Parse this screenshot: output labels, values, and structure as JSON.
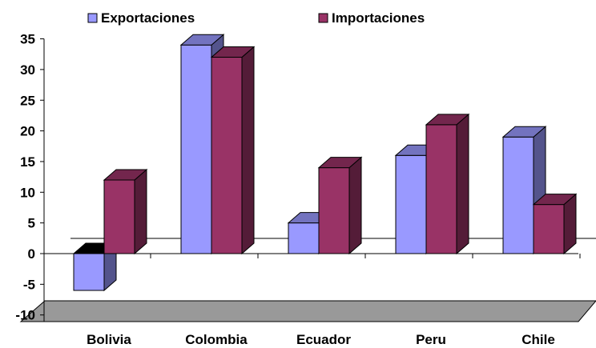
{
  "chart_data": {
    "type": "bar",
    "categories": [
      "Bolivia",
      "Colombia",
      "Ecuador",
      "Peru",
      "Chile"
    ],
    "series": [
      {
        "name": "Exportaciones",
        "values": [
          -6,
          34,
          5,
          16,
          19
        ],
        "color": "#9999ff"
      },
      {
        "name": "Importaciones",
        "values": [
          12,
          32,
          14,
          21,
          8
        ],
        "color": "#993366"
      }
    ],
    "yticks": [
      35,
      30,
      25,
      20,
      15,
      10,
      5,
      0,
      -5,
      -10
    ],
    "ylim": [
      -10,
      35
    ],
    "legend_position": "top",
    "style": "3d-clustered-column",
    "floor_color": "#999999"
  }
}
